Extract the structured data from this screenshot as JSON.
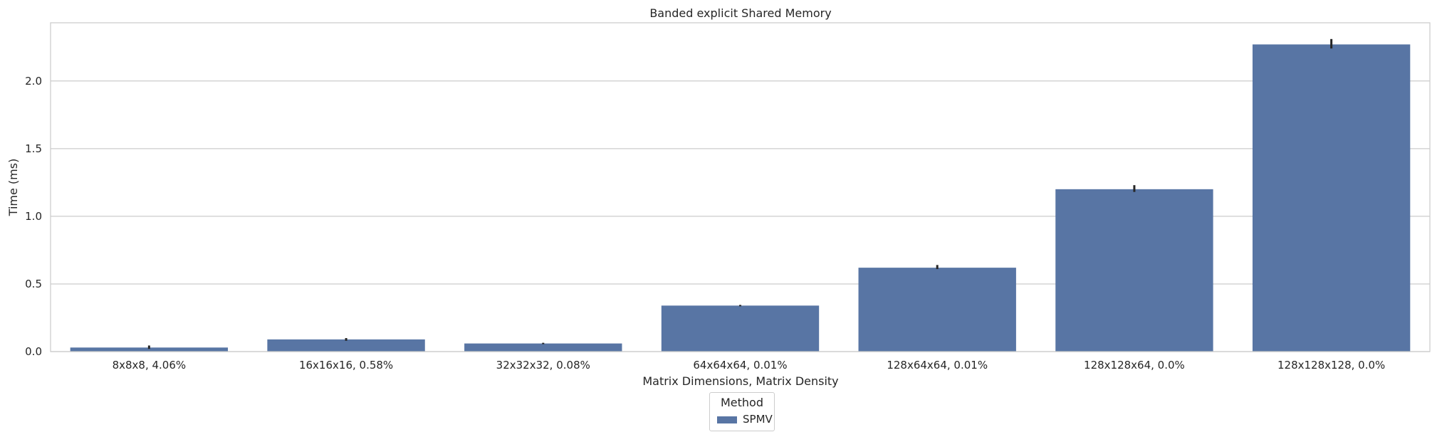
{
  "chart_data": {
    "type": "bar",
    "title": "Banded explicit Shared Memory",
    "xlabel": "Matrix Dimensions, Matrix Density",
    "ylabel": "Time (ms)",
    "categories": [
      "8x8x8, 4.06%",
      "16x16x16, 0.58%",
      "32x32x32, 0.08%",
      "64x64x64, 0.01%",
      "128x64x64, 0.01%",
      "128x128x64, 0.0%",
      "128x128x128, 0.0%"
    ],
    "series": [
      {
        "name": "SPMV",
        "values": [
          0.03,
          0.09,
          0.06,
          0.34,
          0.62,
          1.2,
          2.27
        ],
        "error": [
          [
            0.02,
            0.045
          ],
          [
            0.08,
            0.1
          ],
          [
            0.055,
            0.065
          ],
          [
            0.335,
            0.345
          ],
          [
            0.61,
            0.64
          ],
          [
            1.18,
            1.23
          ],
          [
            2.24,
            2.31
          ]
        ]
      }
    ],
    "ylim": [
      0,
      2.43
    ],
    "yticks": [
      "0.0",
      "0.5",
      "1.0",
      "1.5",
      "2.0"
    ],
    "grid": true,
    "legend": {
      "title": "Method",
      "placement": "bottom-center"
    },
    "colors": {
      "bar": "#5875a4",
      "error": "#262626",
      "grid": "#cccccc"
    }
  }
}
